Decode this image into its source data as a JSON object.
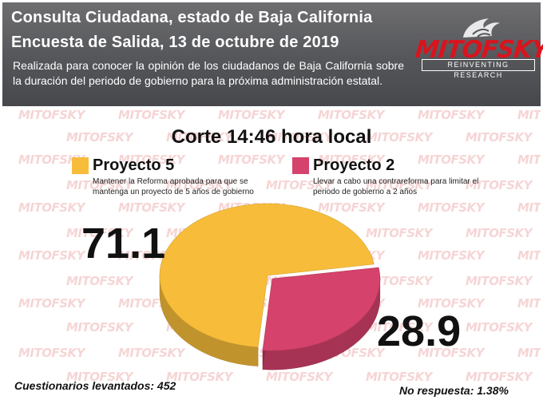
{
  "header": {
    "title_line1": "Consulta Ciudadana, estado de Baja California",
    "title_line2": "Encuesta de Salida, 13 de octubre de 2019",
    "description": "Realizada para  conocer la opinión de los ciudadanos de Baja California sobre la duración  del periodo de gobierno para la próxima administración estatal."
  },
  "logo": {
    "word": "MITOFSKY",
    "tagline": "REINVENTING RESEARCH"
  },
  "watermark_text": "MITOFSKY",
  "chart_data": {
    "type": "pie",
    "title": "Corte 14:46 hora local",
    "slices": [
      {
        "name": "Proyecto 5",
        "value": 71.1,
        "label": "71.1",
        "color": "#f7bd3a",
        "description": "Mantener la Reforma aprobada para que se mantenga un proyecto de 5 años de gobierno"
      },
      {
        "name": "Proyecto 2",
        "value": 28.9,
        "label": "28.9",
        "color": "#d5426b",
        "description": "Llevar a cabo una contrareforma para limitar el periodo de gobierno a 2 años"
      }
    ],
    "legend_placement": "top"
  },
  "footer": {
    "cuestionarios": "Cuestionarios levantados: 452",
    "no_respuesta": "No respuesta: 1.38%"
  }
}
